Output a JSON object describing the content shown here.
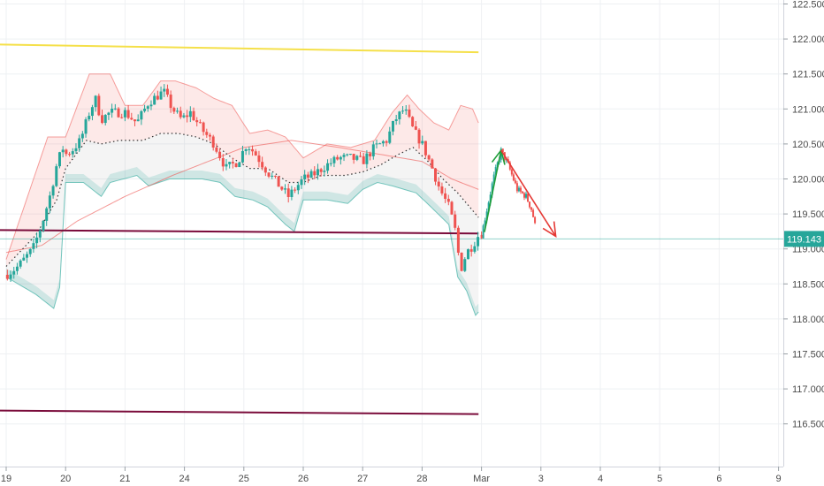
{
  "chart_data": {
    "type": "candlestick",
    "x_tick_labels": [
      "19",
      "20",
      "21",
      "24",
      "25",
      "26",
      "27",
      "28",
      "Mar",
      "3",
      "4",
      "5",
      "6",
      "9"
    ],
    "y_tick_labels": [
      "122.500",
      "122.000",
      "121.500",
      "121.000",
      "120.500",
      "120.000",
      "119.500",
      "119.000",
      "118.500",
      "118.000",
      "117.500",
      "117.000",
      "116.500"
    ],
    "y_ticks": [
      122.5,
      122.0,
      121.5,
      121.0,
      120.5,
      120.0,
      119.5,
      119.0,
      118.5,
      118.0,
      117.5,
      117.0,
      116.5
    ],
    "ylim": [
      116.15,
      122.62
    ],
    "grid": true,
    "last_price": "119.143",
    "horizontal_lines": [
      {
        "level": 121.92,
        "end_level": 121.81,
        "color": "#f5e04a"
      },
      {
        "level": 119.27,
        "end_level": 119.22,
        "color": "#7a0b3a"
      },
      {
        "level": 116.69,
        "end_level": 116.64,
        "color": "#7a0b3a"
      }
    ],
    "projection_arrows": [
      {
        "color": "#1f9e3a",
        "points": [
          [
            8.05,
            119.24
          ],
          [
            8.33,
            120.41
          ]
        ]
      },
      {
        "color": "#e53935",
        "points": [
          [
            8.33,
            120.41
          ],
          [
            9.25,
            119.18
          ]
        ]
      }
    ],
    "colors": {
      "up": "#26a69a",
      "down": "#ef5350",
      "grid": "#eef0f3",
      "price_tag": "#26a69a"
    }
  }
}
